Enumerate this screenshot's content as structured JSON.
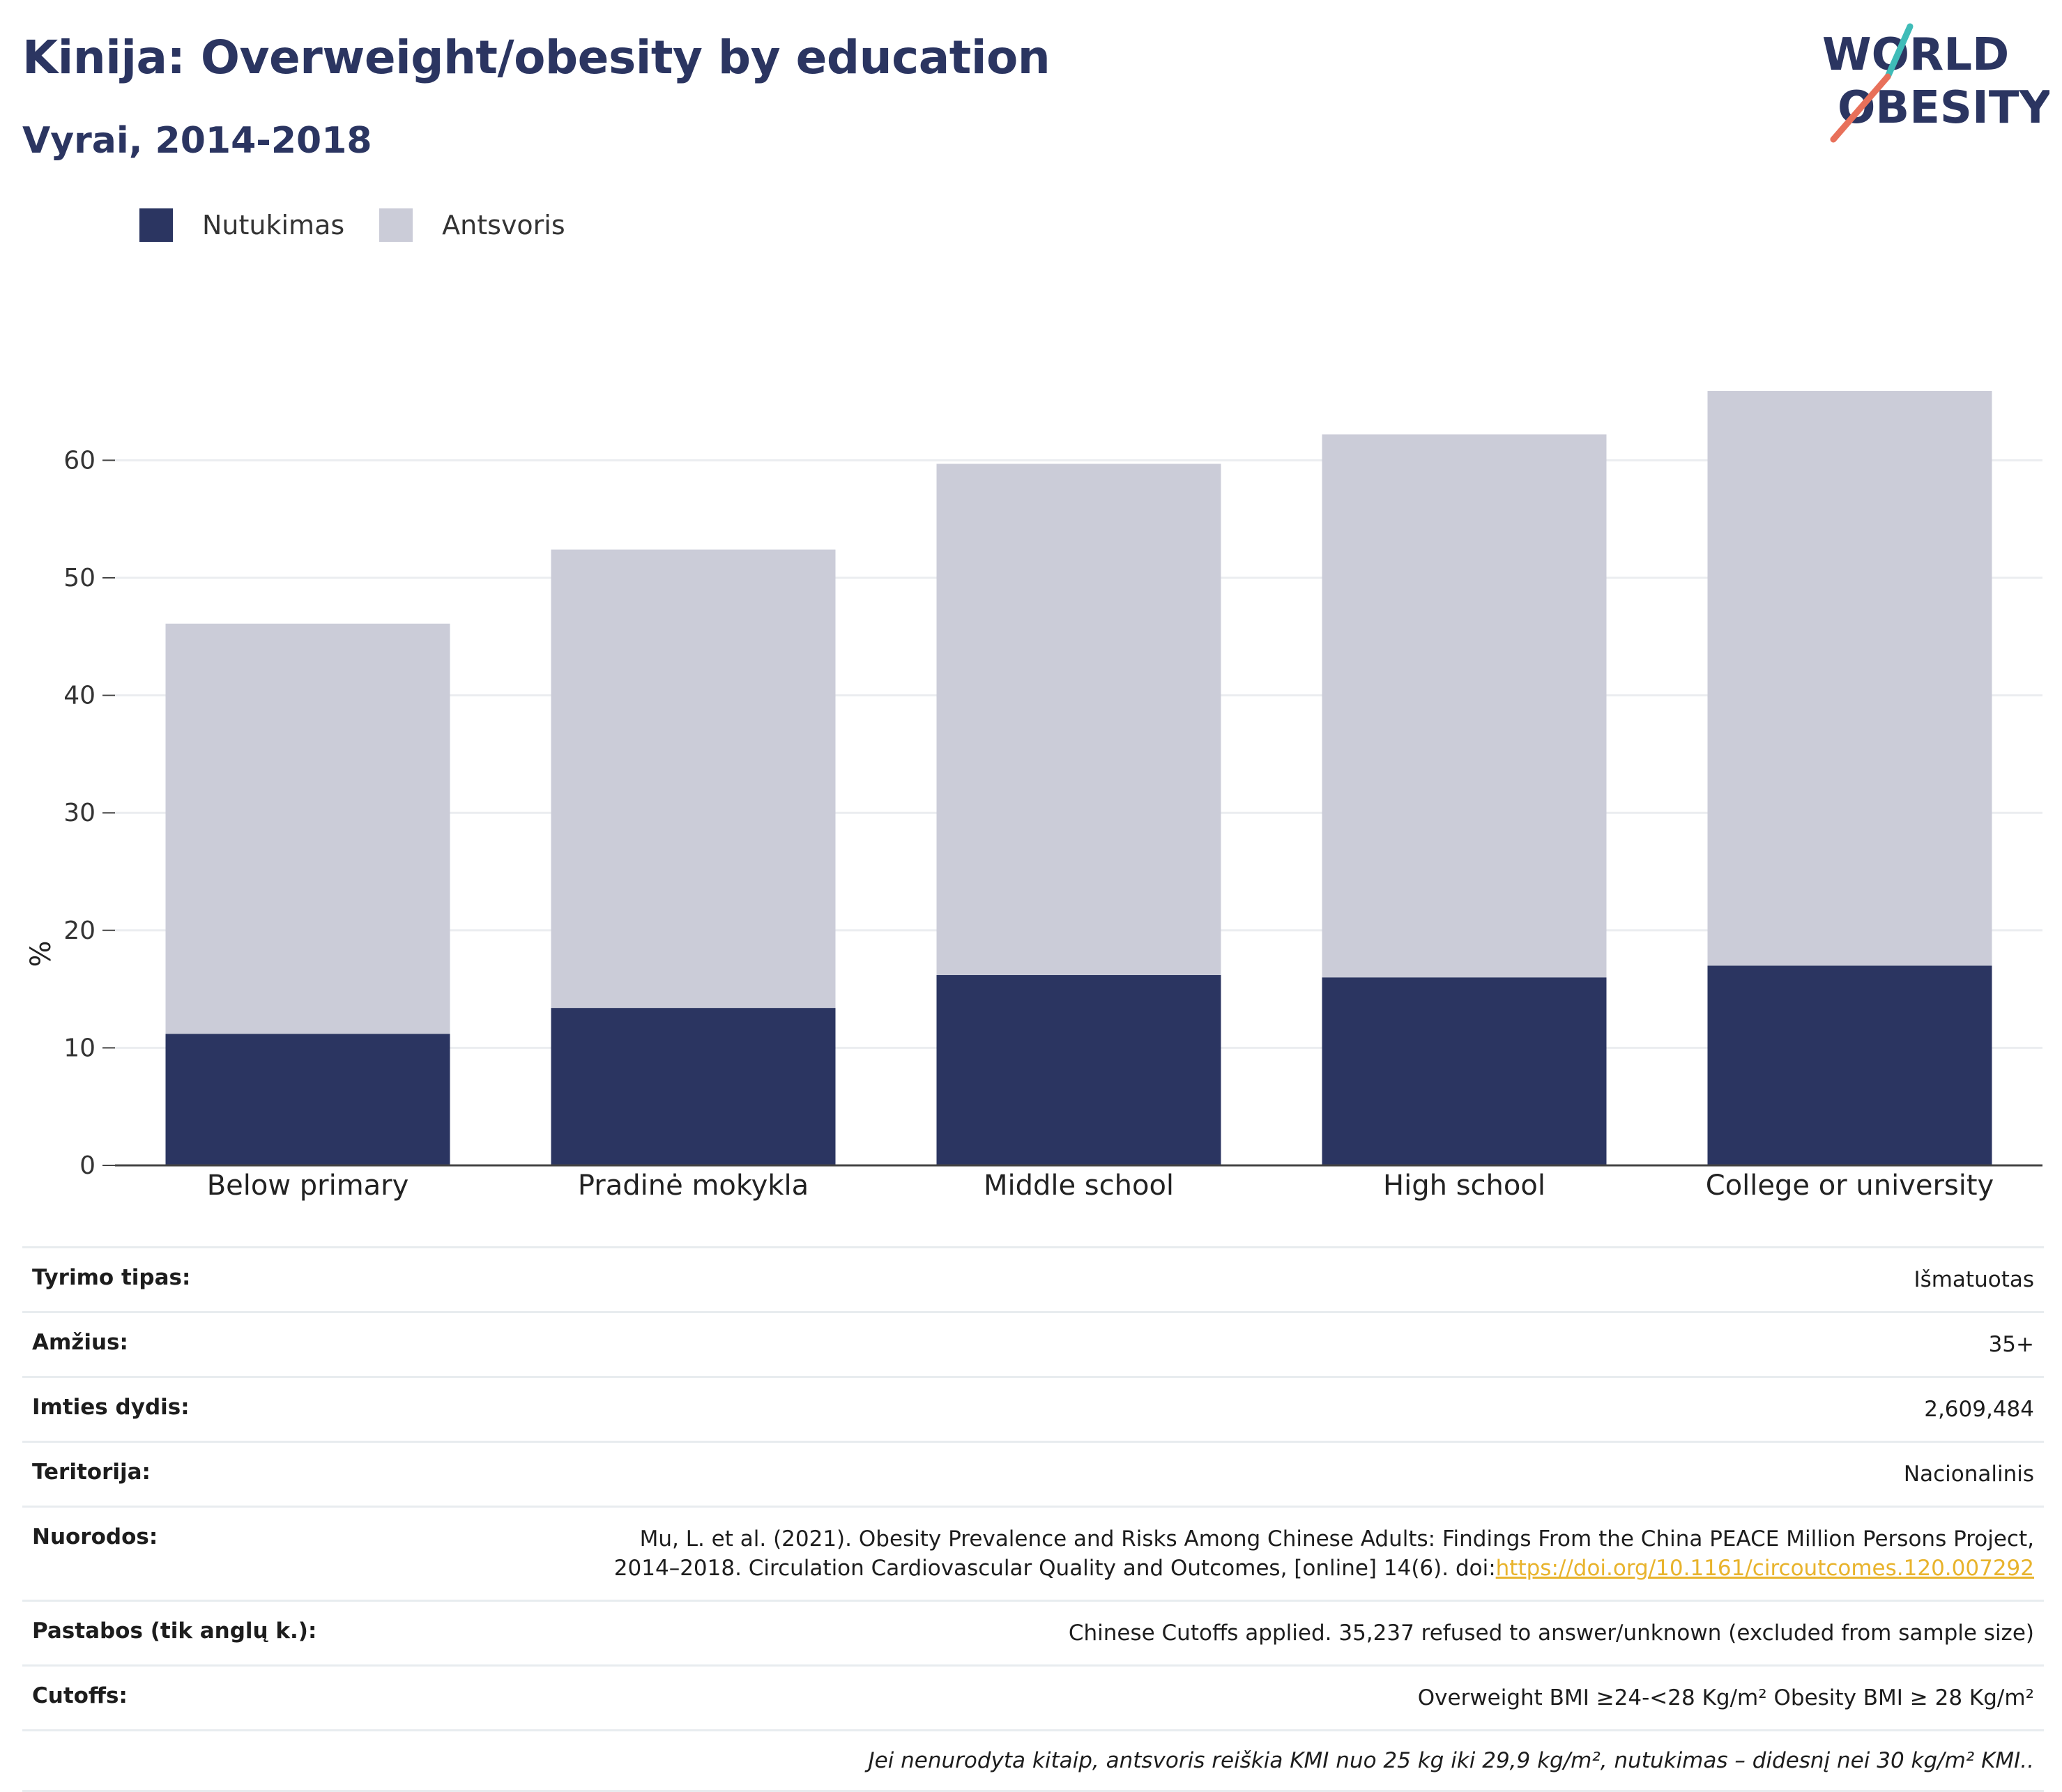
{
  "header": {
    "title": "Kinija: Overweight/obesity by education",
    "subtitle": "Vyrai, 2014-2018",
    "logo_top": "WORLD",
    "logo_bottom": "OBESITY"
  },
  "colors": {
    "obesity": "#2b3561",
    "overweight": "#cbccd8",
    "title": "#2b3561",
    "link": "#e8b32c",
    "logo_teal": "#3fbcb8",
    "logo_coral": "#e8705a"
  },
  "legend": [
    {
      "label": "Nutukimas",
      "color": "#2b3561"
    },
    {
      "label": "Antsvoris",
      "color": "#cbccd8"
    }
  ],
  "chart_data": {
    "type": "bar",
    "stacked": true,
    "categories": [
      "Below primary",
      "Pradinė mokykla",
      "Middle school",
      "High school",
      "College or university"
    ],
    "series": [
      {
        "name": "Nutukimas",
        "values": [
          11.2,
          13.4,
          16.2,
          16.0,
          17.0
        ],
        "color": "#2b3561"
      },
      {
        "name": "Antsvoris",
        "values": [
          34.9,
          39.0,
          43.5,
          46.2,
          48.9
        ],
        "color": "#cbccd8"
      }
    ],
    "ylabel": "%",
    "ylim": [
      0,
      70
    ],
    "yticks": [
      0,
      10,
      20,
      30,
      40,
      50,
      60
    ],
    "grid": true,
    "legend_position": "top-left"
  },
  "info": [
    {
      "key": "Tyrimo tipas:",
      "value": "Išmatuotas"
    },
    {
      "key": "Amžius:",
      "value": "35+"
    },
    {
      "key": "Imties dydis:",
      "value": "2,609,484"
    },
    {
      "key": "Teritorija:",
      "value": "Nacionalinis"
    },
    {
      "key": "Nuorodos:",
      "value_line1": "Mu, L. et al. (2021). Obesity Prevalence and Risks Among Chinese Adults: Findings From the China PEACE Million Persons Project,",
      "value_line2": "2014–2018. Circulation Cardiovascular Quality and Outcomes, [online] 14(6). doi:",
      "link": "https://doi.org/10.1161/circoutcomes.120.007292"
    },
    {
      "key": "Pastabos (tik anglų k.):",
      "value": "Chinese Cutoffs applied. 35,237 refused to answer/unknown (excluded from sample size)"
    },
    {
      "key": "Cutoffs:",
      "value": "Overweight BMI ≥24-<28 Kg/m² Obesity BMI ≥ 28 Kg/m²"
    }
  ],
  "footnote": "Jei nenurodyta kitaip, antsvoris reiškia KMI nuo 25 kg iki 29,9 kg/m², nutukimas – didesnį nei 30 kg/m² KMI.."
}
